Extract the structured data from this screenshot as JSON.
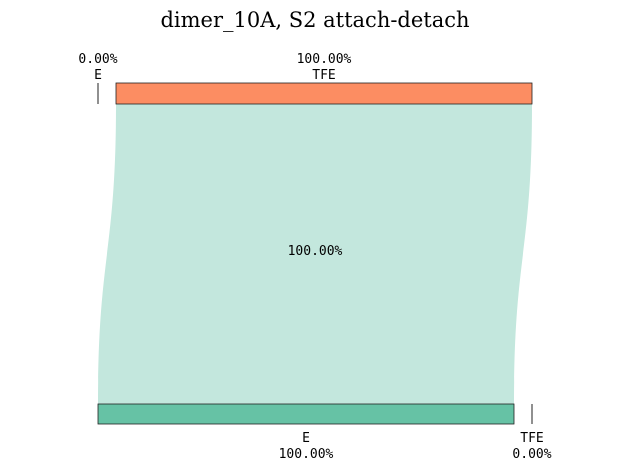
{
  "chart_data": {
    "type": "sankey",
    "title": "dimer_10A, S2 attach-detach",
    "top": {
      "nodes": [
        {
          "name": "E",
          "share": 0.0,
          "pct_label": "0.00%",
          "color": "#fc8d62"
        },
        {
          "name": "TFE",
          "share": 100.0,
          "pct_label": "100.00%",
          "color": "#fc8d62"
        }
      ]
    },
    "bottom": {
      "nodes": [
        {
          "name": "E",
          "share": 100.0,
          "pct_label": "100.00%",
          "color": "#66c2a5"
        },
        {
          "name": "TFE",
          "share": 0.0,
          "pct_label": "0.00%",
          "color": "#66c2a5"
        }
      ]
    },
    "flows": [
      {
        "from": "TFE",
        "to": "E",
        "value": 100.0,
        "label": "100.00%",
        "color": "#c3e7dd"
      }
    ]
  }
}
